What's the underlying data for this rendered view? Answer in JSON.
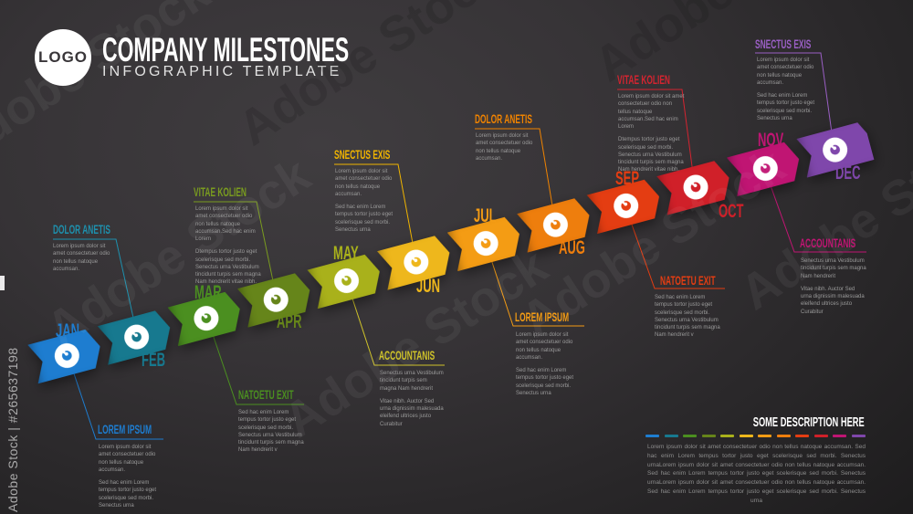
{
  "watermark": {
    "vertical": "Adobe Stock | #265637198",
    "diagonal": "Adobe Stock"
  },
  "header": {
    "logo": "LOGO",
    "title": "COMPANY MILESTONES",
    "subtitle": "INFOGRAPHIC TEMPLATE"
  },
  "timeline": {
    "months": [
      {
        "name": "JAN",
        "color": "#1e7dd0"
      },
      {
        "name": "FEB",
        "color": "#17798f"
      },
      {
        "name": "MAR",
        "color": "#4b8f20"
      },
      {
        "name": "APR",
        "color": "#66851a"
      },
      {
        "name": "MAY",
        "color": "#a9b11b"
      },
      {
        "name": "JUN",
        "color": "#eeb71c"
      },
      {
        "name": "JUL",
        "color": "#f49c14"
      },
      {
        "name": "AUG",
        "color": "#ee7e0d"
      },
      {
        "name": "SEP",
        "color": "#e43d12"
      },
      {
        "name": "OCT",
        "color": "#d02029"
      },
      {
        "name": "NOV",
        "color": "#c01573"
      },
      {
        "name": "DEC",
        "color": "#7f47ab"
      }
    ]
  },
  "callouts": [
    {
      "month": "FEB",
      "side": "above",
      "title": "DOLOR ANETIS",
      "color": "#1e90ad",
      "paragraphs": [
        "Lorem ipsum dolor sit amet consectetuer odio non tellus natoque accumsan."
      ]
    },
    {
      "month": "APR",
      "side": "above",
      "title": "VITAE KOLIEN",
      "color": "#7a9c1f",
      "paragraphs": [
        "Lorem ipsum dolor sit amet consectetuer odio non tellus natoque accumsan.Sed hac enim Lorem",
        "Dtempus tortor justo eget scelerisque sed morbi. Senectus urna Vestibulum tincidunt turpis sem magna Nam hendrerit vitae nibh."
      ]
    },
    {
      "month": "JUN",
      "side": "above",
      "title": "SNECTUS EXIS",
      "color": "#f0b400",
      "paragraphs": [
        "Lorem ipsum dolor sit amet consectetuer odio non tellus natoque accumsan.",
        "Sed hac enim Lorem tempus tortor justo eget scelerisque sed morbi. Senectus urna"
      ]
    },
    {
      "month": "AUG",
      "side": "above",
      "title": "DOLOR ANETIS",
      "color": "#f08300",
      "paragraphs": [
        "Lorem ipsum dolor sit amet consectetuer odio non tellus natoque accumsan."
      ]
    },
    {
      "month": "OCT",
      "side": "above",
      "title": "VITAE KOLIEN",
      "color": "#d42430",
      "paragraphs": [
        "Lorem ipsum dolor sit amet consectetuer odio non tellus natoque accumsan.Sed hac enim Lorem",
        "Dtempus tortor justo eget scelerisque sed morbi. Senectus urna Vestibulum tincidunt turpis sem magna Nam hendrerit vitae nibh."
      ]
    },
    {
      "month": "DEC",
      "side": "above",
      "title": "SNECTUS EXIS",
      "color": "#9a5fc4",
      "paragraphs": [
        "Lorem ipsum dolor sit amet consectetuer odio non tellus natoque accumsan.",
        "Sed hac enim Lorem tempus tortor justo eget scelerisque sed morbi. Senectus urna"
      ]
    },
    {
      "month": "JAN",
      "side": "below",
      "title": "LOREM IPSUM",
      "color": "#1e7dd0",
      "paragraphs": [
        "Lorem ipsum dolor sit amet consectetuer odio non tellus natoque accumsan.",
        "Sed hac enim Lorem tempus tortor justo eget scelerisque sed morbi. Senectus urna"
      ]
    },
    {
      "month": "MAR",
      "side": "below",
      "title": "NATOETU EXIT",
      "color": "#4b8f20",
      "paragraphs": [
        "Sed hac enim Lorem tempus tortor justo eget scelerisque sed morbi. Senectus urna Vestibulum tincidunt turpis sem magna Nam hendrerit v"
      ]
    },
    {
      "month": "MAY",
      "side": "below",
      "title": "ACCOUNTANIS",
      "color": "#cfc32a",
      "paragraphs": [
        "Senectus urna Vestibulum tincidunt turpis sem magna Nam hendrerit",
        "Vitae nibh. Auctor Sed urna dignissim malesuada eleifend ultrices justo Curabitur"
      ]
    },
    {
      "month": "JUL",
      "side": "below",
      "title": "LOREM IPSUM",
      "color": "#f49c14",
      "paragraphs": [
        "Lorem ipsum dolor sit amet consectetuer odio non tellus natoque accumsan.",
        "Sed hac enim Lorem tempus tortor justo eget scelerisque sed morbi. Senectus urna"
      ]
    },
    {
      "month": "SEP",
      "side": "below",
      "title": "NATOETU EXIT",
      "color": "#e43d12",
      "paragraphs": [
        "Sed hac enim Lorem tempus tortor justo eget scelerisque sed morbi. Senectus urna Vestibulum tincidunt turpis sem magna Nam hendrerit v"
      ]
    },
    {
      "month": "NOV",
      "side": "below",
      "title": "ACCOUNTANIS",
      "color": "#c01573",
      "paragraphs": [
        "Senectus urna Vestibulum tincidunt turpis sem magna Nam hendrerit",
        "Vitae nibh. Auctor Sed urna dignissim malesuada eleifend ultrices justo Curabitur"
      ]
    }
  ],
  "description": {
    "title": "SOME DESCRIPTION HERE",
    "text": "Lorem ipsum dolor sit amet consectetuer odio non tellus natoque accumsan. Sed hac enim Lorem tempus tortor justo eget scelerisque sed morbi. Senectus urnaLorem ipsum dolor sit amet consectetuer odio non tellus natoque accumsan. Sed hac enim Lorem tempus tortor justo eget scelerisque sed morbi. Senectus urnaLorem ipsum dolor sit amet consectetuer odio non tellus natoque accumsan. Sed hac enim Lorem tempus tortor justo eget scelerisque sed morbi. Senectus urna"
  },
  "icons": {
    "milestone": "swirl-icon"
  }
}
